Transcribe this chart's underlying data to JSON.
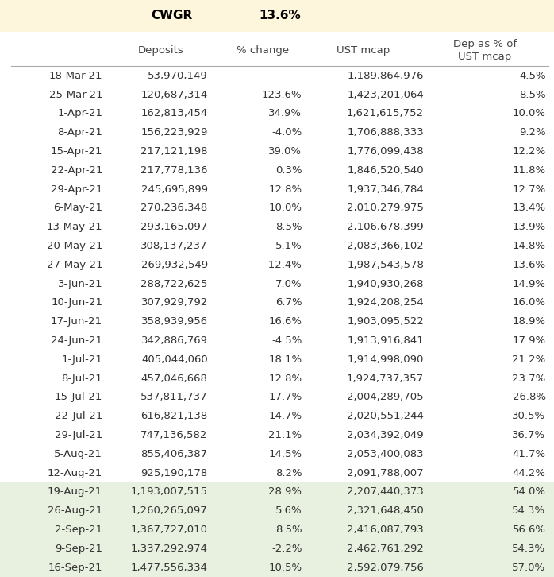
{
  "cwgr_label": "CWGR",
  "cwgr_value": "13.6%",
  "header_bg": "#fdf5dc",
  "white_bg": "#ffffff",
  "green_bg": "#e8f0e0",
  "rows": [
    {
      "date": "18-Mar-21",
      "deposits": "53,970,149",
      "pct_change": "--",
      "ust_mcap": "1,189,864,976",
      "dep_pct": "4.5%",
      "bg": "white"
    },
    {
      "date": "25-Mar-21",
      "deposits": "120,687,314",
      "pct_change": "123.6%",
      "ust_mcap": "1,423,201,064",
      "dep_pct": "8.5%",
      "bg": "white"
    },
    {
      "date": "1-Apr-21",
      "deposits": "162,813,454",
      "pct_change": "34.9%",
      "ust_mcap": "1,621,615,752",
      "dep_pct": "10.0%",
      "bg": "white"
    },
    {
      "date": "8-Apr-21",
      "deposits": "156,223,929",
      "pct_change": "-4.0%",
      "ust_mcap": "1,706,888,333",
      "dep_pct": "9.2%",
      "bg": "white"
    },
    {
      "date": "15-Apr-21",
      "deposits": "217,121,198",
      "pct_change": "39.0%",
      "ust_mcap": "1,776,099,438",
      "dep_pct": "12.2%",
      "bg": "white"
    },
    {
      "date": "22-Apr-21",
      "deposits": "217,778,136",
      "pct_change": "0.3%",
      "ust_mcap": "1,846,520,540",
      "dep_pct": "11.8%",
      "bg": "white"
    },
    {
      "date": "29-Apr-21",
      "deposits": "245,695,899",
      "pct_change": "12.8%",
      "ust_mcap": "1,937,346,784",
      "dep_pct": "12.7%",
      "bg": "white"
    },
    {
      "date": "6-May-21",
      "deposits": "270,236,348",
      "pct_change": "10.0%",
      "ust_mcap": "2,010,279,975",
      "dep_pct": "13.4%",
      "bg": "white"
    },
    {
      "date": "13-May-21",
      "deposits": "293,165,097",
      "pct_change": "8.5%",
      "ust_mcap": "2,106,678,399",
      "dep_pct": "13.9%",
      "bg": "white"
    },
    {
      "date": "20-May-21",
      "deposits": "308,137,237",
      "pct_change": "5.1%",
      "ust_mcap": "2,083,366,102",
      "dep_pct": "14.8%",
      "bg": "white"
    },
    {
      "date": "27-May-21",
      "deposits": "269,932,549",
      "pct_change": "-12.4%",
      "ust_mcap": "1,987,543,578",
      "dep_pct": "13.6%",
      "bg": "white"
    },
    {
      "date": "3-Jun-21",
      "deposits": "288,722,625",
      "pct_change": "7.0%",
      "ust_mcap": "1,940,930,268",
      "dep_pct": "14.9%",
      "bg": "white"
    },
    {
      "date": "10-Jun-21",
      "deposits": "307,929,792",
      "pct_change": "6.7%",
      "ust_mcap": "1,924,208,254",
      "dep_pct": "16.0%",
      "bg": "white"
    },
    {
      "date": "17-Jun-21",
      "deposits": "358,939,956",
      "pct_change": "16.6%",
      "ust_mcap": "1,903,095,522",
      "dep_pct": "18.9%",
      "bg": "white"
    },
    {
      "date": "24-Jun-21",
      "deposits": "342,886,769",
      "pct_change": "-4.5%",
      "ust_mcap": "1,913,916,841",
      "dep_pct": "17.9%",
      "bg": "white"
    },
    {
      "date": "1-Jul-21",
      "deposits": "405,044,060",
      "pct_change": "18.1%",
      "ust_mcap": "1,914,998,090",
      "dep_pct": "21.2%",
      "bg": "white"
    },
    {
      "date": "8-Jul-21",
      "deposits": "457,046,668",
      "pct_change": "12.8%",
      "ust_mcap": "1,924,737,357",
      "dep_pct": "23.7%",
      "bg": "white"
    },
    {
      "date": "15-Jul-21",
      "deposits": "537,811,737",
      "pct_change": "17.7%",
      "ust_mcap": "2,004,289,705",
      "dep_pct": "26.8%",
      "bg": "white"
    },
    {
      "date": "22-Jul-21",
      "deposits": "616,821,138",
      "pct_change": "14.7%",
      "ust_mcap": "2,020,551,244",
      "dep_pct": "30.5%",
      "bg": "white"
    },
    {
      "date": "29-Jul-21",
      "deposits": "747,136,582",
      "pct_change": "21.1%",
      "ust_mcap": "2,034,392,049",
      "dep_pct": "36.7%",
      "bg": "white"
    },
    {
      "date": "5-Aug-21",
      "deposits": "855,406,387",
      "pct_change": "14.5%",
      "ust_mcap": "2,053,400,083",
      "dep_pct": "41.7%",
      "bg": "white"
    },
    {
      "date": "12-Aug-21",
      "deposits": "925,190,178",
      "pct_change": "8.2%",
      "ust_mcap": "2,091,788,007",
      "dep_pct": "44.2%",
      "bg": "white"
    },
    {
      "date": "19-Aug-21",
      "deposits": "1,193,007,515",
      "pct_change": "28.9%",
      "ust_mcap": "2,207,440,373",
      "dep_pct": "54.0%",
      "bg": "green"
    },
    {
      "date": "26-Aug-21",
      "deposits": "1,260,265,097",
      "pct_change": "5.6%",
      "ust_mcap": "2,321,648,450",
      "dep_pct": "54.3%",
      "bg": "green"
    },
    {
      "date": "2-Sep-21",
      "deposits": "1,367,727,010",
      "pct_change": "8.5%",
      "ust_mcap": "2,416,087,793",
      "dep_pct": "56.6%",
      "bg": "green"
    },
    {
      "date": "9-Sep-21",
      "deposits": "1,337,292,974",
      "pct_change": "-2.2%",
      "ust_mcap": "2,462,761,292",
      "dep_pct": "54.3%",
      "bg": "green"
    },
    {
      "date": "16-Sep-21",
      "deposits": "1,477,556,334",
      "pct_change": "10.5%",
      "ust_mcap": "2,592,079,756",
      "dep_pct": "57.0%",
      "bg": "green"
    }
  ],
  "text_color": "#333333",
  "header_color": "#444444",
  "title_color": "#000000",
  "font_size": 9.5,
  "header_font_size": 9.5,
  "line_color": "#aaaaaa",
  "title_font_size": 11
}
